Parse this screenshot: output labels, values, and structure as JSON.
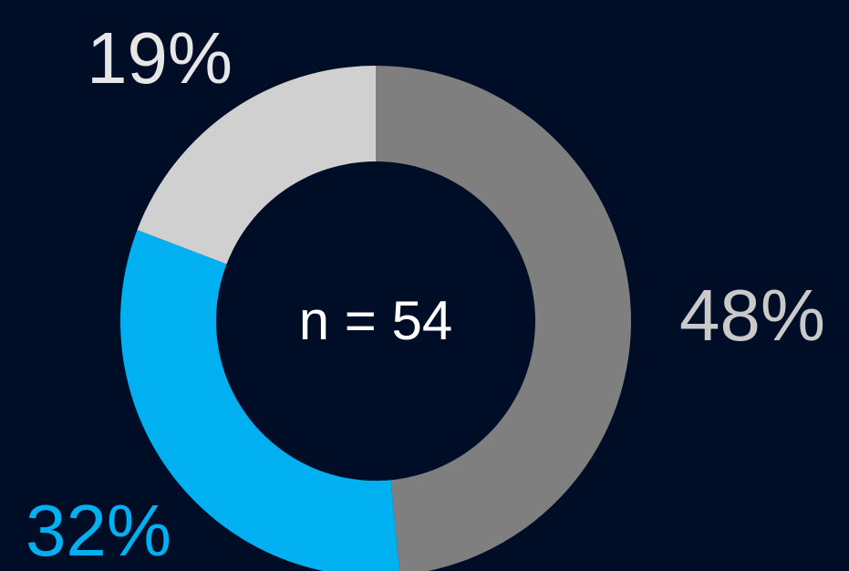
{
  "chart_data": {
    "type": "donut",
    "center_label": "n = 54",
    "categories": [
      null,
      null,
      null
    ],
    "values": [
      48,
      32,
      19
    ],
    "value_labels": [
      "48%",
      "32%",
      "19%"
    ],
    "colors": [
      "#7f7f7f",
      "#00b0f0",
      "#d0d0d0"
    ],
    "label_colors": [
      "#c9c9c9",
      "#00b0f0",
      "#e6e6e6"
    ]
  }
}
